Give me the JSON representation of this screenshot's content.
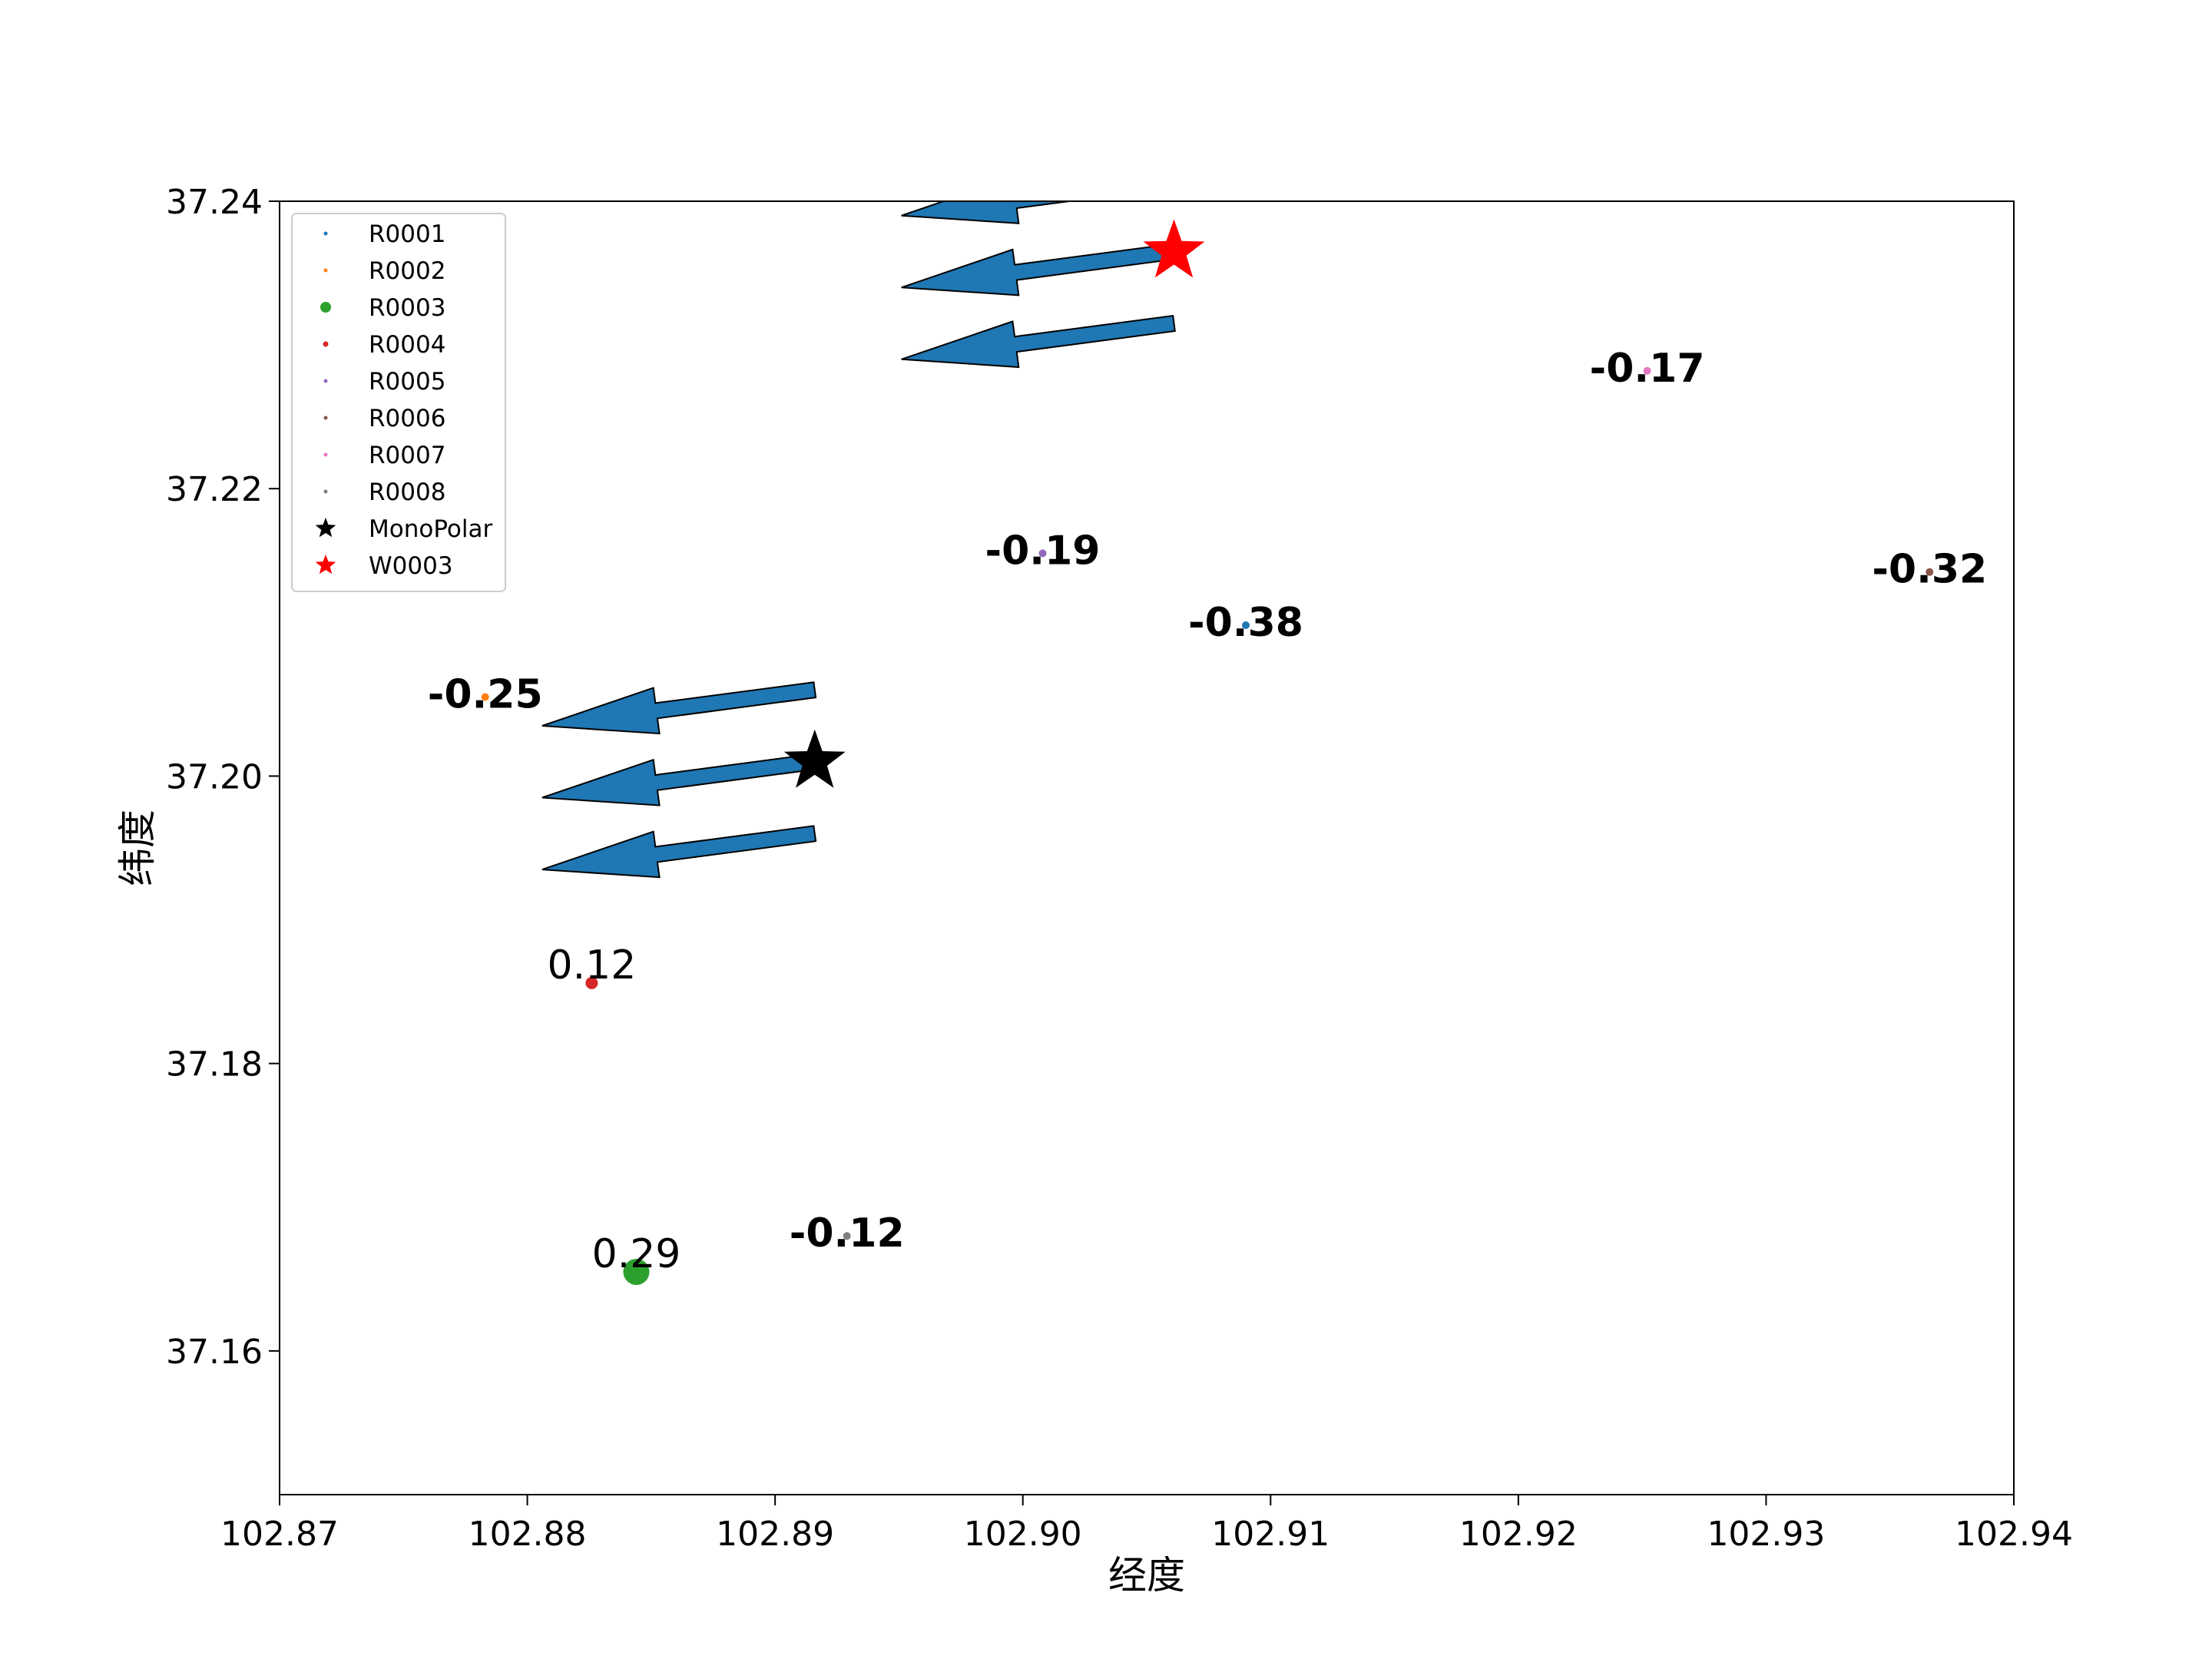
{
  "chart_data": {
    "type": "scatter",
    "title": "",
    "xlabel": "经度",
    "ylabel": "纬度",
    "xlim": [
      102.87,
      102.94
    ],
    "ylim": [
      37.15,
      37.24
    ],
    "xticks": [
      "102.87",
      "102.88",
      "102.89",
      "102.90",
      "102.91",
      "102.92",
      "102.93",
      "102.94"
    ],
    "yticks": [
      "37.16",
      "37.18",
      "37.20",
      "37.22",
      "37.24"
    ],
    "grid": false,
    "legend_position": "top-left",
    "series": [
      {
        "name": "R0001",
        "color": "#1f77b4",
        "marker": "point",
        "x": 102.909,
        "y": 37.2105,
        "value_label": "-0.38",
        "label_bold": true
      },
      {
        "name": "R0002",
        "color": "#ff7f0e",
        "marker": "point",
        "x": 102.8783,
        "y": 37.2055,
        "value_label": "-0.25",
        "label_bold": true
      },
      {
        "name": "R0003",
        "color": "#2ca02c",
        "marker": "circle-large",
        "x": 102.8844,
        "y": 37.1655,
        "value_label": "0.29",
        "label_bold": false
      },
      {
        "name": "R0004",
        "color": "#d62728",
        "marker": "circle",
        "x": 102.8826,
        "y": 37.1856,
        "value_label": "0.12",
        "label_bold": false
      },
      {
        "name": "R0005",
        "color": "#9467bd",
        "marker": "point",
        "x": 102.9008,
        "y": 37.2155,
        "value_label": "-0.19",
        "label_bold": true
      },
      {
        "name": "R0006",
        "color": "#8c564b",
        "marker": "point",
        "x": 102.9366,
        "y": 37.2142,
        "value_label": "-0.32",
        "label_bold": true
      },
      {
        "name": "R0007",
        "color": "#e377c2",
        "marker": "point",
        "x": 102.9252,
        "y": 37.2282,
        "value_label": "-0.17",
        "label_bold": true
      },
      {
        "name": "R0008",
        "color": "#7f7f7f",
        "marker": "point",
        "x": 102.8929,
        "y": 37.168,
        "value_label": "-0.12",
        "label_bold": true
      },
      {
        "name": "MonoPolar",
        "color": "#000000",
        "marker": "star",
        "x": 102.8916,
        "y": 37.201,
        "value_label": ""
      },
      {
        "name": "W0003",
        "color": "#ff0000",
        "marker": "star",
        "x": 102.9061,
        "y": 37.2365,
        "value_label": ""
      }
    ],
    "arrows": [
      {
        "color": "#1f77b4",
        "x0": 102.8916,
        "y0": 37.206,
        "dx": -0.011,
        "dy": -0.0025
      },
      {
        "color": "#1f77b4",
        "x0": 102.8916,
        "y0": 37.201,
        "dx": -0.011,
        "dy": -0.0025
      },
      {
        "color": "#1f77b4",
        "x0": 102.8916,
        "y0": 37.196,
        "dx": -0.011,
        "dy": -0.0025
      },
      {
        "color": "#1f77b4",
        "x0": 102.9061,
        "y0": 37.2415,
        "dx": -0.011,
        "dy": -0.0025
      },
      {
        "color": "#1f77b4",
        "x0": 102.9061,
        "y0": 37.2365,
        "dx": -0.011,
        "dy": -0.0025
      },
      {
        "color": "#1f77b4",
        "x0": 102.9061,
        "y0": 37.2315,
        "dx": -0.011,
        "dy": -0.0025
      }
    ]
  }
}
